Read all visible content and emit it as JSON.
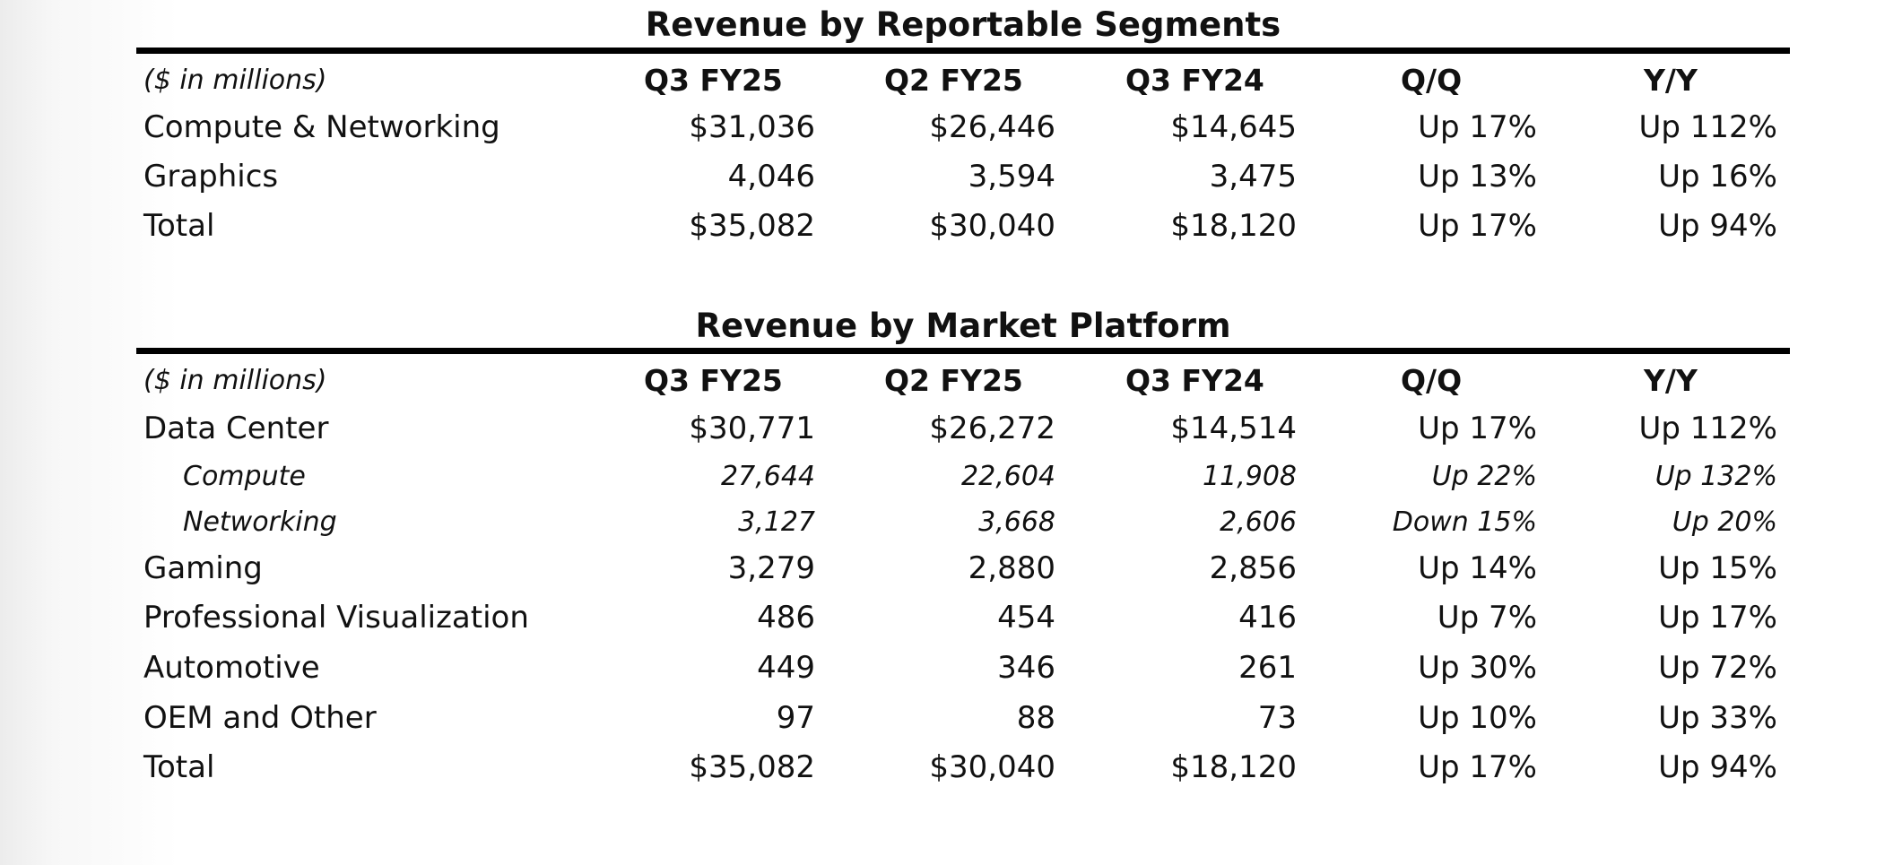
{
  "segments": {
    "title": "Revenue by Reportable Segments",
    "units_label": "($ in millions)",
    "columns": [
      "Q3 FY25",
      "Q2 FY25",
      "Q3 FY24",
      "Q/Q",
      "Y/Y"
    ],
    "rows": [
      {
        "label": "Compute & Networking",
        "values": [
          "$31,036",
          "$26,446",
          "$14,645",
          "Up 17%",
          "Up 112%"
        ]
      },
      {
        "label": "Graphics",
        "values": [
          "4,046",
          "3,594",
          "3,475",
          "Up 13%",
          "Up 16%"
        ]
      },
      {
        "label": "Total",
        "values": [
          "$35,082",
          "$30,040",
          "$18,120",
          "Up 17%",
          "Up 94%"
        ]
      }
    ]
  },
  "platforms": {
    "title": "Revenue by Market Platform",
    "units_label": "($ in millions)",
    "columns": [
      "Q3 FY25",
      "Q2 FY25",
      "Q3 FY24",
      "Q/Q",
      "Y/Y"
    ],
    "rows": [
      {
        "label": "Data Center",
        "values": [
          "$30,771",
          "$26,272",
          "$14,514",
          "Up 17%",
          "Up 112%"
        ]
      },
      {
        "label": "Compute",
        "values": [
          "27,644",
          "22,604",
          "11,908",
          "Up 22%",
          "Up 132%"
        ]
      },
      {
        "label": "Networking",
        "values": [
          "3,127",
          "3,668",
          "2,606",
          "Down 15%",
          "Up 20%"
        ]
      },
      {
        "label": "Gaming",
        "values": [
          "3,279",
          "2,880",
          "2,856",
          "Up 14%",
          "Up 15%"
        ]
      },
      {
        "label": "Professional Visualization",
        "values": [
          "486",
          "454",
          "416",
          "Up 7%",
          "Up 17%"
        ]
      },
      {
        "label": "Automotive",
        "values": [
          "449",
          "346",
          "261",
          "Up 30%",
          "Up 72%"
        ]
      },
      {
        "label": "OEM and Other",
        "values": [
          "97",
          "88",
          "73",
          "Up 10%",
          "Up 33%"
        ]
      },
      {
        "label": "Total",
        "values": [
          "$35,082",
          "$30,040",
          "$18,120",
          "Up 17%",
          "Up 94%"
        ]
      }
    ]
  }
}
